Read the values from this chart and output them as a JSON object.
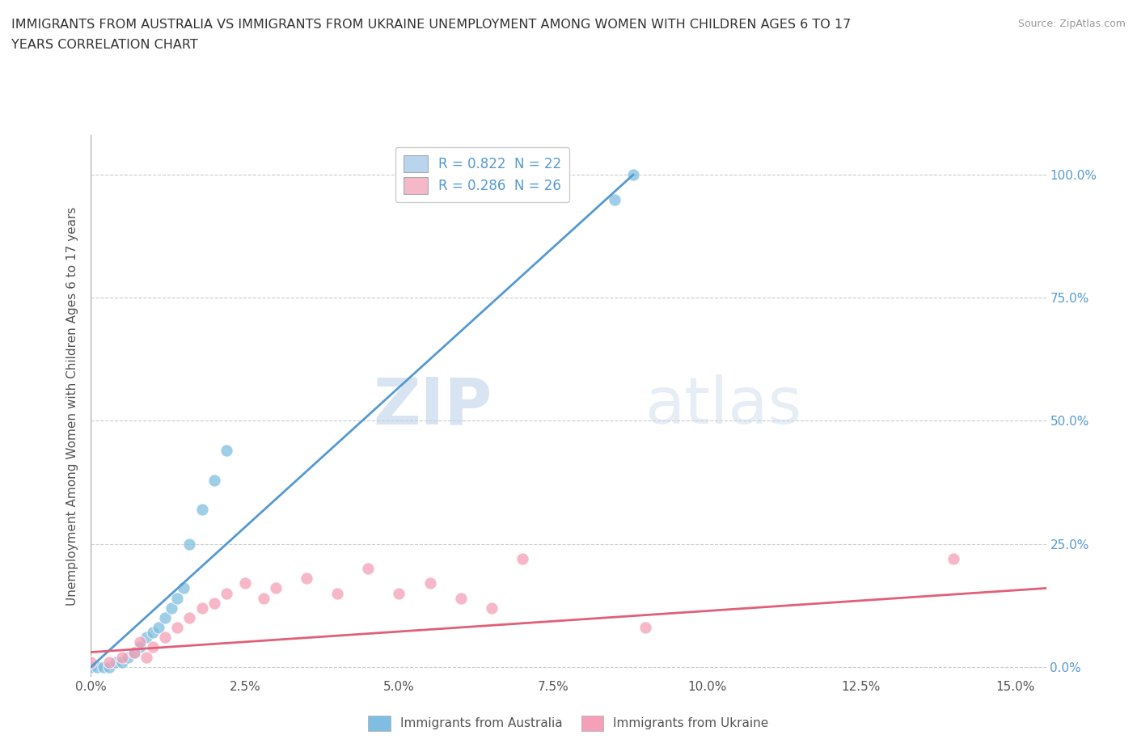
{
  "title_line1": "IMMIGRANTS FROM AUSTRALIA VS IMMIGRANTS FROM UKRAINE UNEMPLOYMENT AMONG WOMEN WITH CHILDREN AGES 6 TO 17",
  "title_line2": "YEARS CORRELATION CHART",
  "source_text": "Source: ZipAtlas.com",
  "ylabel": "Unemployment Among Women with Children Ages 6 to 17 years",
  "xlabel_ticks": [
    "0.0%",
    "2.5%",
    "5.0%",
    "7.5%",
    "10.0%",
    "12.5%",
    "15.0%"
  ],
  "ylabel_ticks_right": [
    "0.0%",
    "25.0%",
    "50.0%",
    "75.0%",
    "100.0%"
  ],
  "xlim": [
    0.0,
    0.155
  ],
  "ylim": [
    -0.02,
    1.08
  ],
  "watermark_zip": "ZIP",
  "watermark_atlas": "atlas",
  "legend_entries": [
    {
      "label": "R = 0.822  N = 22",
      "color": "#b8d4ef"
    },
    {
      "label": "R = 0.286  N = 26",
      "color": "#f4b8c8"
    }
  ],
  "australia_scatter_x": [
    0.0,
    0.001,
    0.002,
    0.003,
    0.004,
    0.005,
    0.006,
    0.007,
    0.008,
    0.009,
    0.01,
    0.011,
    0.012,
    0.013,
    0.014,
    0.015,
    0.016,
    0.018,
    0.02,
    0.022,
    0.085,
    0.088
  ],
  "australia_scatter_y": [
    0.0,
    0.0,
    0.0,
    0.0,
    0.01,
    0.01,
    0.02,
    0.03,
    0.04,
    0.06,
    0.07,
    0.08,
    0.1,
    0.12,
    0.14,
    0.16,
    0.25,
    0.32,
    0.38,
    0.44,
    0.95,
    1.0
  ],
  "ukraine_scatter_x": [
    0.0,
    0.003,
    0.005,
    0.007,
    0.008,
    0.009,
    0.01,
    0.012,
    0.014,
    0.016,
    0.018,
    0.02,
    0.022,
    0.025,
    0.028,
    0.03,
    0.035,
    0.04,
    0.045,
    0.05,
    0.055,
    0.06,
    0.065,
    0.07,
    0.09,
    0.14
  ],
  "ukraine_scatter_y": [
    0.01,
    0.01,
    0.02,
    0.03,
    0.05,
    0.02,
    0.04,
    0.06,
    0.08,
    0.1,
    0.12,
    0.13,
    0.15,
    0.17,
    0.14,
    0.16,
    0.18,
    0.15,
    0.2,
    0.15,
    0.17,
    0.14,
    0.12,
    0.22,
    0.08,
    0.22
  ],
  "australia_line_x": [
    0.0,
    0.088
  ],
  "australia_line_y": [
    0.0,
    1.0
  ],
  "ukraine_line_x": [
    0.0,
    0.155
  ],
  "ukraine_line_y": [
    0.03,
    0.16
  ],
  "australia_color": "#7fbee0",
  "ukraine_color": "#f4a0b8",
  "australia_line_color": "#5599d0",
  "ukraine_line_color": "#e0607a",
  "background_color": "#ffffff",
  "grid_color": "#cccccc"
}
